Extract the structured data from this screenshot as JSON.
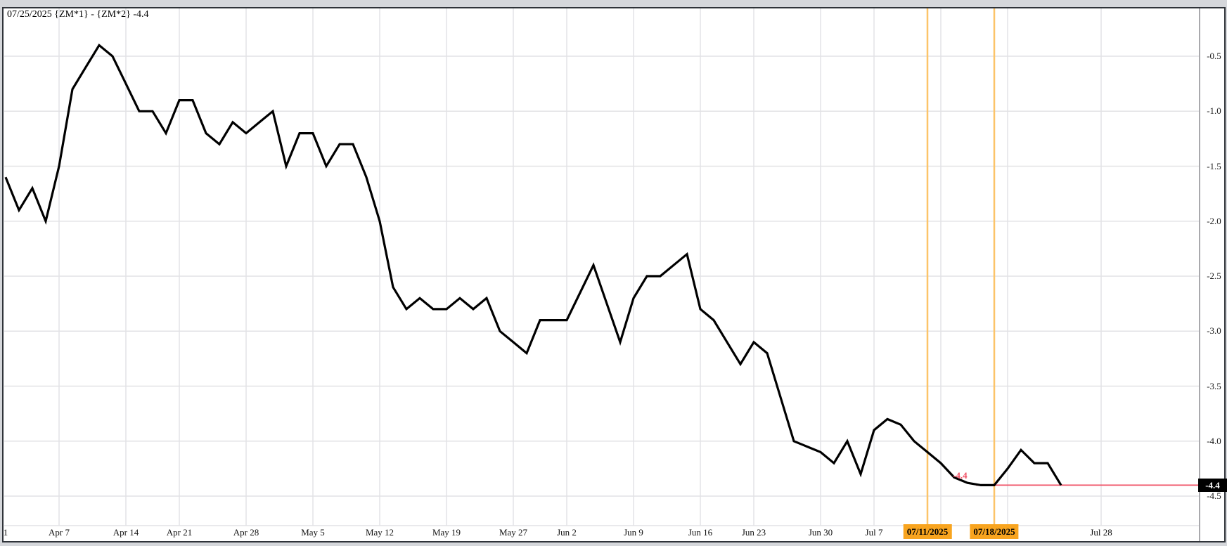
{
  "header": {
    "title": "07/25/2025 {ZM*1} - {ZM*2} -4.4"
  },
  "colors": {
    "outer_background": "#d5d7db",
    "frame_border": "#2f3339",
    "plot_background": "#ffffff",
    "grid": "#e2e2e5",
    "price_line": "#000000",
    "last_price_line": "#f04e62",
    "last_price_badge_bg": "#000000",
    "last_price_badge_text": "#ffffff",
    "highlight_line": "#fcc469",
    "highlight_label_bg": "#f8a41f",
    "axis_divider": "#a9a9ad",
    "label_text": "#111111"
  },
  "chart_data": {
    "type": "line",
    "title": "07/25/2025 {ZM*1} - {ZM*2} -4.4",
    "as_of_date": "07/25/2025",
    "expression": "{ZM*1} - {ZM*2}",
    "last": -4.4,
    "xlabel": "",
    "ylabel": "",
    "ylim": [
      -4.78,
      -0.05
    ],
    "grid": true,
    "y_axis": {
      "ticks": [
        "-0.5",
        "-1.0",
        "-1.5",
        "-2.0",
        "-2.5",
        "-3.0",
        "-3.5",
        "-4.0",
        "-4.5"
      ]
    },
    "x_axis": {
      "start_date": "2025-04-01",
      "holidays": [
        "2025-04-18",
        "2025-05-26",
        "2025-06-19",
        "2025-07-04"
      ],
      "ticks": [
        {
          "date": "2025-04-01",
          "label": "1",
          "grid": false
        },
        {
          "date": "2025-04-07",
          "label": "Apr 7",
          "grid": true
        },
        {
          "date": "2025-04-14",
          "label": "Apr 14",
          "grid": true
        },
        {
          "date": "2025-04-21",
          "label": "Apr 21",
          "grid": true
        },
        {
          "date": "2025-04-28",
          "label": "Apr 28",
          "grid": true
        },
        {
          "date": "2025-05-05",
          "label": "May 5",
          "grid": true
        },
        {
          "date": "2025-05-12",
          "label": "May 12",
          "grid": true
        },
        {
          "date": "2025-05-19",
          "label": "May 19",
          "grid": true
        },
        {
          "date": "2025-05-27",
          "label": "May 27",
          "grid": true
        },
        {
          "date": "2025-06-02",
          "label": "Jun 2",
          "grid": true
        },
        {
          "date": "2025-06-09",
          "label": "Jun 9",
          "grid": true
        },
        {
          "date": "2025-06-16",
          "label": "Jun 16",
          "grid": true
        },
        {
          "date": "2025-06-23",
          "label": "Jun 23",
          "grid": true
        },
        {
          "date": "2025-06-30",
          "label": "Jun 30",
          "grid": true
        },
        {
          "date": "2025-07-07",
          "label": "Jul 7",
          "grid": true
        },
        {
          "date": "2025-07-14",
          "label": "",
          "grid": true
        },
        {
          "date": "2025-07-21",
          "label": "",
          "grid": true
        },
        {
          "date": "2025-07-28",
          "label": "Jul 28",
          "grid": true
        }
      ],
      "highlights": [
        {
          "date": "2025-07-11",
          "label": "07/11/2025"
        },
        {
          "date": "2025-07-18",
          "label": "07/18/2025"
        }
      ]
    },
    "series": [
      {
        "name": "{ZM*1} - {ZM*2}",
        "points": [
          [
            "2025-04-01",
            -1.6
          ],
          [
            "2025-04-02",
            -1.9
          ],
          [
            "2025-04-03",
            -1.7
          ],
          [
            "2025-04-04",
            -2.0
          ],
          [
            "2025-04-07",
            -1.5
          ],
          [
            "2025-04-08",
            -0.8
          ],
          [
            "2025-04-09",
            -0.6
          ],
          [
            "2025-04-10",
            -0.4
          ],
          [
            "2025-04-11",
            -0.5
          ],
          [
            "2025-04-14",
            -0.75
          ],
          [
            "2025-04-15",
            -1.0
          ],
          [
            "2025-04-16",
            -1.0
          ],
          [
            "2025-04-17",
            -1.2
          ],
          [
            "2025-04-21",
            -0.9
          ],
          [
            "2025-04-22",
            -0.9
          ],
          [
            "2025-04-23",
            -1.2
          ],
          [
            "2025-04-24",
            -1.3
          ],
          [
            "2025-04-25",
            -1.1
          ],
          [
            "2025-04-28",
            -1.2
          ],
          [
            "2025-04-29",
            -1.1
          ],
          [
            "2025-04-30",
            -1.0
          ],
          [
            "2025-05-01",
            -1.5
          ],
          [
            "2025-05-02",
            -1.2
          ],
          [
            "2025-05-05",
            -1.2
          ],
          [
            "2025-05-06",
            -1.5
          ],
          [
            "2025-05-07",
            -1.3
          ],
          [
            "2025-05-08",
            -1.3
          ],
          [
            "2025-05-09",
            -1.6
          ],
          [
            "2025-05-12",
            -2.0
          ],
          [
            "2025-05-13",
            -2.6
          ],
          [
            "2025-05-14",
            -2.8
          ],
          [
            "2025-05-15",
            -2.7
          ],
          [
            "2025-05-16",
            -2.8
          ],
          [
            "2025-05-19",
            -2.8
          ],
          [
            "2025-05-20",
            -2.7
          ],
          [
            "2025-05-21",
            -2.8
          ],
          [
            "2025-05-22",
            -2.7
          ],
          [
            "2025-05-23",
            -3.0
          ],
          [
            "2025-05-27",
            -3.1
          ],
          [
            "2025-05-28",
            -3.2
          ],
          [
            "2025-05-29",
            -2.9
          ],
          [
            "2025-05-30",
            -2.9
          ],
          [
            "2025-06-02",
            -2.9
          ],
          [
            "2025-06-03",
            -2.65
          ],
          [
            "2025-06-04",
            -2.4
          ],
          [
            "2025-06-05",
            -2.75
          ],
          [
            "2025-06-06",
            -3.1
          ],
          [
            "2025-06-09",
            -2.7
          ],
          [
            "2025-06-10",
            -2.5
          ],
          [
            "2025-06-11",
            -2.5
          ],
          [
            "2025-06-12",
            -2.4
          ],
          [
            "2025-06-13",
            -2.3
          ],
          [
            "2025-06-16",
            -2.8
          ],
          [
            "2025-06-17",
            -2.9
          ],
          [
            "2025-06-18",
            -3.1
          ],
          [
            "2025-06-20",
            -3.3
          ],
          [
            "2025-06-23",
            -3.1
          ],
          [
            "2025-06-24",
            -3.2
          ],
          [
            "2025-06-25",
            -3.6
          ],
          [
            "2025-06-26",
            -4.0
          ],
          [
            "2025-06-27",
            -4.05
          ],
          [
            "2025-06-30",
            -4.1
          ],
          [
            "2025-07-01",
            -4.2
          ],
          [
            "2025-07-02",
            -4.0
          ],
          [
            "2025-07-03",
            -4.3
          ],
          [
            "2025-07-07",
            -3.9
          ],
          [
            "2025-07-08",
            -3.8
          ],
          [
            "2025-07-09",
            -3.85
          ],
          [
            "2025-07-10",
            -4.0
          ],
          [
            "2025-07-11",
            -4.1
          ],
          [
            "2025-07-14",
            -4.2
          ],
          [
            "2025-07-15",
            -4.33
          ],
          [
            "2025-07-16",
            -4.38
          ],
          [
            "2025-07-17",
            -4.4
          ],
          [
            "2025-07-18",
            -4.4
          ],
          [
            "2025-07-21",
            -4.25
          ],
          [
            "2025-07-22",
            -4.08
          ],
          [
            "2025-07-23",
            -4.2
          ],
          [
            "2025-07-24",
            -4.2
          ],
          [
            "2025-07-25",
            -4.4
          ]
        ]
      }
    ],
    "annotations": {
      "last_price_label": "-4.4",
      "last_price_badge": "-4.4"
    },
    "legend": {
      "visible": false
    }
  }
}
